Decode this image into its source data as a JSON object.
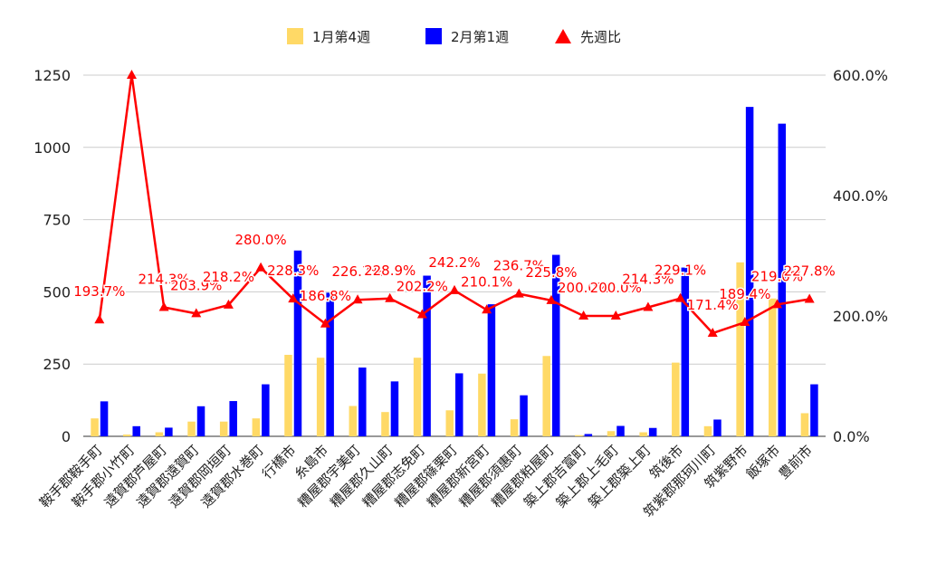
{
  "chart_data": {
    "type": "bar",
    "categories": [
      "鞍手郡鞍手町",
      "鞍手郡小竹町",
      "遠賀郡芦屋町",
      "遠賀郡遠賀町",
      "遠賀郡岡垣町",
      "遠賀郡水巻町",
      "行橋市",
      "糸島市",
      "糟屋郡宇美町",
      "糟屋郡久山町",
      "糟屋郡志免町",
      "糟屋郡篠栗町",
      "糟屋郡新宮町",
      "糟屋郡須惠町",
      "糟屋郡粕屋町",
      "築上郡吉富町",
      "築上郡上毛町",
      "築上郡築上町",
      "筑後市",
      "筑紫郡那珂川町",
      "筑紫野市",
      "飯塚市",
      "豊前市"
    ],
    "series": [
      {
        "name": "1月第4週",
        "kind": "bar",
        "axis": "left",
        "color": "#FFD966",
        "values": [
          62,
          6,
          14,
          51,
          51,
          62,
          282,
          272,
          105,
          84,
          272,
          90,
          217,
          59,
          278,
          4,
          18,
          14,
          255,
          35,
          602,
          477,
          80
        ]
      },
      {
        "name": "2月第1週",
        "kind": "bar",
        "axis": "left",
        "color": "#0000FF",
        "values": [
          121,
          35,
          30,
          104,
          122,
          180,
          643,
          497,
          238,
          190,
          556,
          218,
          457,
          142,
          628,
          8,
          36,
          29,
          584,
          58,
          1140,
          1082,
          180
        ]
      },
      {
        "name": "先週比",
        "kind": "line",
        "axis": "right",
        "color": "#FF0000",
        "marker": "triangle",
        "values": [
          193.7,
          600,
          214.3,
          203.9,
          218.2,
          280,
          228.3,
          186.8,
          226.7,
          228.9,
          202.2,
          242.2,
          210.1,
          236.7,
          225.8,
          200,
          200,
          214.3,
          229.1,
          171.4,
          189.4,
          219.0,
          227.8
        ],
        "labels": [
          "193.7%",
          "",
          "214.3%",
          "203.9%",
          "218.2%",
          "280.0%",
          "228.3%",
          "186.8%",
          "226.7%",
          "228.9%",
          "202.2%",
          "242.2%",
          "210.1%",
          "236.7%",
          "225.8%",
          "200.0%",
          "200.0%",
          "214.3%",
          "229.1%",
          "171.4%",
          "189.4%",
          "219.0%",
          "227.8%"
        ]
      }
    ],
    "y_left": {
      "min": 0,
      "max": 1250,
      "ticks": [
        0,
        250,
        500,
        750,
        1000,
        1250
      ],
      "tick_labels": [
        "0",
        "250",
        "500",
        "750",
        "1000",
        "1250"
      ]
    },
    "y_right": {
      "min": 0,
      "max": 600,
      "ticks": [
        0,
        200,
        400,
        600
      ],
      "tick_labels": [
        "0.0%",
        "200.0%",
        "400.0%",
        "600.0%"
      ]
    },
    "legend": {
      "position": "top",
      "items": [
        "1月第4週",
        "2月第1週",
        "先週比"
      ]
    },
    "grid": true,
    "title": "",
    "xlabel": "",
    "ylabel": ""
  }
}
